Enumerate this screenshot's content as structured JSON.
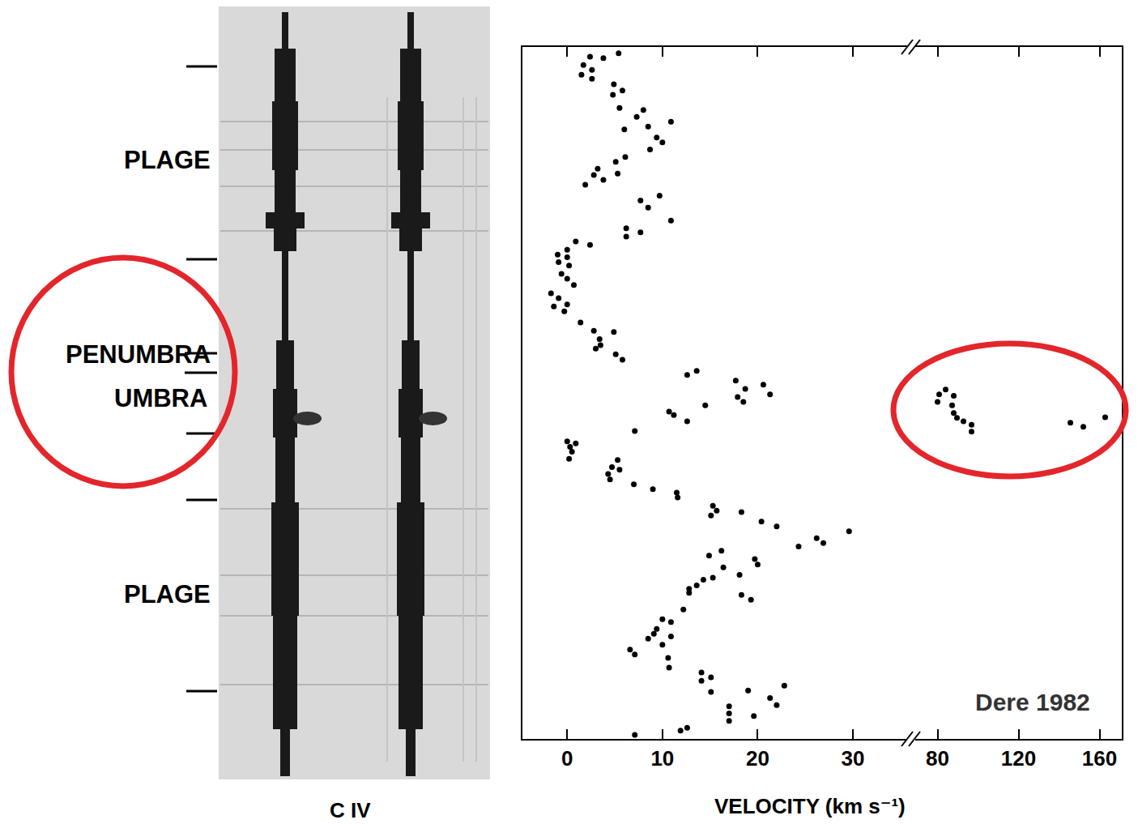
{
  "chart_data": {
    "type": "scatter",
    "x_label": "VELOCITY (km s⁻¹)",
    "annotations": [
      "Dere 1982"
    ],
    "x": [
      5.4,
      2.4,
      3.8,
      1.7,
      2.6,
      1.5,
      2.6,
      4.9,
      5.8,
      4.8,
      5.5,
      8.0,
      7.3,
      10.9,
      8.5,
      6.0,
      9.4,
      10.0,
      8.7,
      6.1,
      5.1,
      3.2,
      5.3,
      2.8,
      3.8,
      1.9,
      9.7,
      7.7,
      8.5,
      10.9,
      6.2,
      7.7,
      6.2,
      0.9,
      2.4,
      0.0,
      -1.0,
      0.0,
      -0.9,
      0.2,
      -0.6,
      0.0,
      0.7,
      -1.7,
      -0.9,
      0.0,
      -1.4,
      -0.3,
      1.4,
      2.8,
      4.9,
      3.4,
      3.5,
      3.0,
      5.1,
      5.8,
      13.6,
      12.6,
      17.7,
      20.6,
      18.7,
      21.3,
      17.9,
      18.5,
      14.5,
      10.7,
      11.2,
      12.6,
      7.1,
      0.0,
      0.9,
      0.3,
      0.5,
      0.2,
      5.3,
      4.7,
      5.5,
      4.3,
      4.5,
      7.0,
      9.0,
      11.5,
      11.6,
      15.3,
      15.7,
      18.3,
      15.1,
      20.4,
      22.0,
      29.6,
      26.2,
      26.9,
      24.3,
      16.2,
      14.9,
      19.7,
      20.0,
      16.4,
      18.1,
      15.3,
      14.3,
      13.6,
      12.8,
      12.8,
      18.3,
      19.3,
      12.2,
      10.0,
      10.9,
      9.4,
      9.1,
      10.9,
      8.5,
      10.0,
      6.6,
      7.1,
      10.6,
      10.7,
      14.1,
      15.1,
      14.1,
      15.1,
      22.8,
      19.0,
      21.3,
      22.0,
      17.0,
      17.0,
      17.0,
      19.6,
      12.6,
      11.9,
      7.1,
      84.0,
      80.8,
      88.0,
      80.0,
      87.2,
      88.0,
      89.6,
      92.8,
      96.8,
      96.8,
      145.6,
      152.0,
      162.8
    ],
    "y": [
      99.1,
      98.6,
      98.4,
      97.4,
      96.7,
      96.0,
      95.4,
      94.6,
      93.7,
      93.1,
      91.2,
      90.9,
      89.9,
      89.2,
      88.5,
      88.1,
      86.9,
      86.2,
      85.2,
      84.1,
      83.4,
      82.4,
      81.7,
      81.5,
      80.8,
      80.1,
      78.5,
      77.8,
      76.8,
      74.9,
      73.8,
      73.2,
      72.6,
      71.9,
      71.4,
      70.7,
      70.0,
      69.6,
      68.9,
      68.4,
      67.2,
      66.5,
      65.6,
      64.4,
      63.7,
      62.8,
      62.5,
      61.8,
      60.2,
      59.0,
      58.8,
      57.8,
      56.9,
      56.4,
      55.6,
      54.8,
      53.2,
      52.6,
      51.8,
      51.2,
      50.6,
      49.8,
      49.4,
      48.7,
      48.2,
      47.3,
      46.8,
      45.9,
      44.5,
      43.0,
      42.7,
      42.2,
      41.5,
      40.5,
      40.3,
      39.3,
      38.9,
      38.3,
      37.5,
      36.8,
      36.1,
      35.6,
      34.9,
      33.7,
      33.0,
      32.8,
      32.3,
      31.4,
      30.7,
      30.0,
      29.0,
      28.3,
      27.8,
      27.2,
      26.5,
      26.0,
      25.2,
      24.8,
      23.7,
      23.3,
      23.0,
      22.2,
      21.7,
      21.1,
      20.8,
      20.1,
      18.7,
      17.3,
      16.9,
      15.9,
      15.2,
      14.8,
      14.5,
      13.6,
      12.9,
      12.2,
      11.7,
      10.3,
      9.6,
      8.9,
      8.4,
      6.8,
      7.7,
      7.0,
      5.9,
      4.9,
      4.7,
      3.7,
      2.6,
      3.3,
      1.6,
      1.2,
      0.6,
      50.5,
      49.8,
      49.6,
      48.7,
      48.2,
      47.1,
      46.4,
      45.9,
      45.4,
      44.4,
      45.7,
      45.1,
      46.5
    ],
    "xlim": [
      [
        -4.7,
        35.7
      ],
      [
        69,
        171
      ]
    ],
    "xticks": [
      [
        0,
        10,
        20,
        30
      ],
      [
        80,
        120,
        160
      ]
    ],
    "ylim": [
      0,
      100
    ],
    "tick_labels": "x",
    "grid": false,
    "color": "#000000",
    "marker": "circle"
  },
  "spectrogram": {
    "labels": [
      "PLAGE",
      "PENUMBRA",
      "UMBRA",
      "PLAGE"
    ],
    "caption": "C IV"
  }
}
